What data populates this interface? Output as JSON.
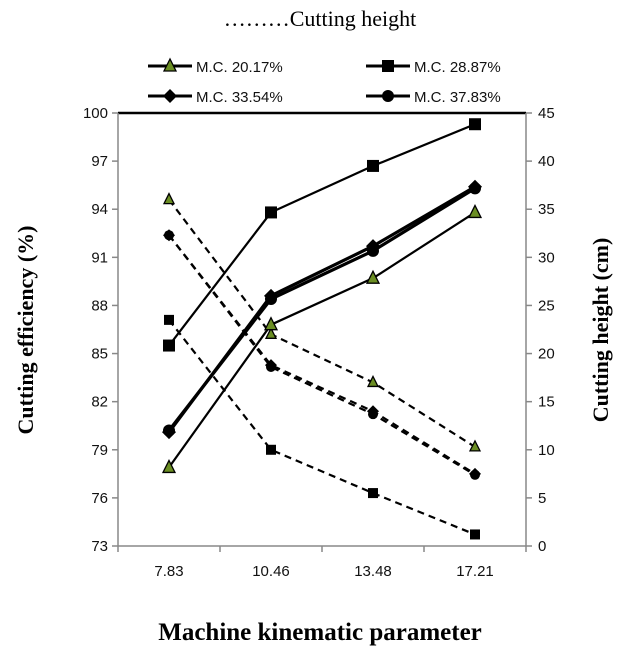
{
  "chart_data": {
    "type": "line",
    "title": "………Cutting height",
    "xlabel": "Machine kinematic parameter",
    "ylabel": "Cutting efficiency (%)",
    "y2label": "Cutting height (cm)",
    "categories": [
      "7.83",
      "10.46",
      "13.48",
      "17.21"
    ],
    "ylim": [
      73,
      100
    ],
    "yticks": [
      "73",
      "76",
      "79",
      "82",
      "85",
      "88",
      "91",
      "94",
      "97",
      "100"
    ],
    "y2lim": [
      0,
      45
    ],
    "y2ticks": [
      "0",
      "5",
      "10",
      "15",
      "20",
      "25",
      "30",
      "35",
      "40",
      "45"
    ],
    "grid": false,
    "legend_placement": "top",
    "series": [
      {
        "name": "M.C. 20.17%",
        "marker": "triangle",
        "efficiency": [
          77.9,
          86.8,
          89.7,
          93.8
        ],
        "cutting_height": [
          36,
          22,
          17,
          10.3
        ]
      },
      {
        "name": "M.C. 28.87%",
        "marker": "square",
        "efficiency": [
          85.5,
          93.8,
          96.7,
          99.3
        ],
        "cutting_height": [
          23.5,
          10,
          5.5,
          1.2
        ]
      },
      {
        "name": "M.C. 33.54%",
        "marker": "diamond",
        "efficiency": [
          80.1,
          88.6,
          91.7,
          95.4
        ],
        "cutting_height": [
          32.3,
          18.8,
          14,
          7.5
        ]
      },
      {
        "name": "M.C. 37.83%",
        "marker": "circle",
        "efficiency": [
          80.2,
          88.4,
          91.4,
          95.3
        ],
        "cutting_height": [
          32.3,
          18.6,
          13.7,
          7.4
        ]
      }
    ]
  }
}
